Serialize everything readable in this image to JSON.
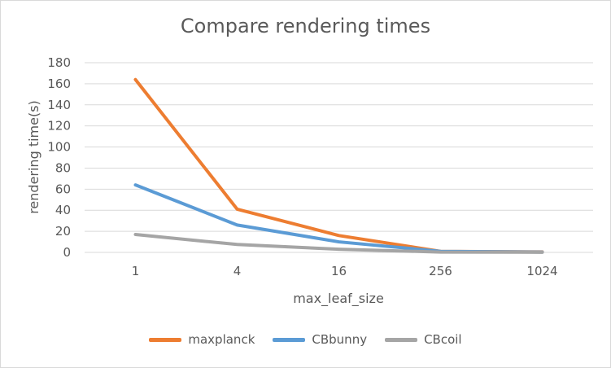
{
  "chart_data": {
    "type": "line",
    "title": "Compare rendering times",
    "xlabel": "max_leaf_size",
    "ylabel": "rendering time(s)",
    "categories": [
      "1",
      "4",
      "16",
      "256",
      "1024"
    ],
    "ylim": [
      0,
      180
    ],
    "yticks": [
      0,
      20,
      40,
      60,
      80,
      100,
      120,
      140,
      160,
      180
    ],
    "grid": true,
    "legend_position": "bottom",
    "series": [
      {
        "name": "maxplanck",
        "color": "#ED7D31",
        "values": [
          164,
          41,
          16,
          1,
          0.5
        ]
      },
      {
        "name": "CBbunny",
        "color": "#5B9BD5",
        "values": [
          64,
          26,
          10,
          1,
          0.3
        ]
      },
      {
        "name": "CBcoil",
        "color": "#A5A5A5",
        "values": [
          17,
          7.5,
          3,
          0.3,
          0.1
        ]
      }
    ]
  }
}
